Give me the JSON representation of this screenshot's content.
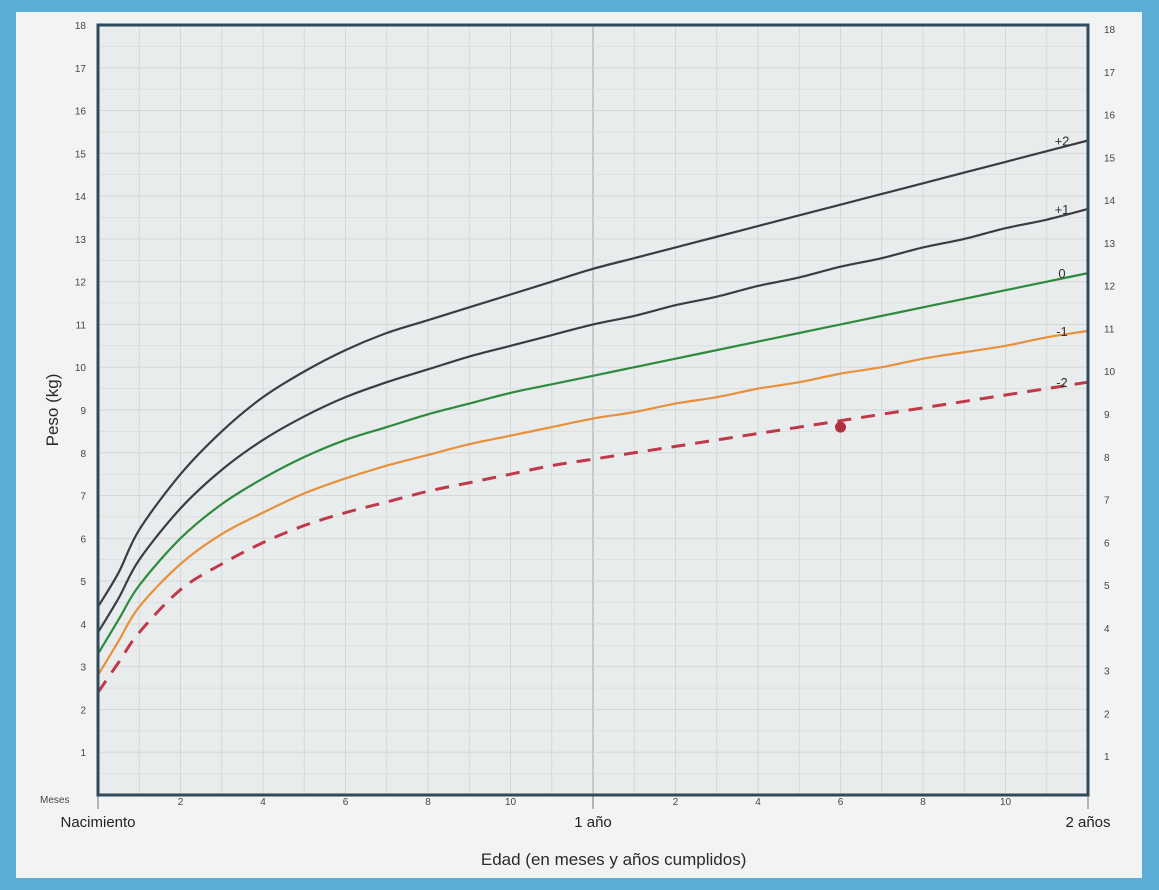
{
  "chart_data": {
    "type": "line",
    "title": "",
    "ylabel": "Peso (kg)",
    "xlabel": "Edad (en meses y años cumplidos)",
    "xlim": [
      0,
      24
    ],
    "ylim": [
      0,
      18
    ],
    "grid": true,
    "y_ticks": [
      1,
      2,
      3,
      4,
      5,
      6,
      7,
      8,
      9,
      10,
      11,
      12,
      13,
      14,
      15,
      16,
      17,
      18
    ],
    "x_month_ticks": [
      {
        "x": 2,
        "label": "2"
      },
      {
        "x": 4,
        "label": "4"
      },
      {
        "x": 6,
        "label": "6"
      },
      {
        "x": 8,
        "label": "8"
      },
      {
        "x": 10,
        "label": "10"
      },
      {
        "x": 14,
        "label": "2"
      },
      {
        "x": 16,
        "label": "4"
      },
      {
        "x": 18,
        "label": "6"
      },
      {
        "x": 20,
        "label": "8"
      },
      {
        "x": 22,
        "label": "10"
      }
    ],
    "x_major_labels": [
      {
        "x": 0,
        "label": "Nacimiento"
      },
      {
        "x": 12,
        "label": "1 año"
      },
      {
        "x": 24,
        "label": "2 años"
      }
    ],
    "months_label": "Meses",
    "x": [
      0,
      0.5,
      1,
      2,
      3,
      4,
      5,
      6,
      7,
      8,
      9,
      10,
      11,
      12,
      13,
      14,
      15,
      16,
      17,
      18,
      19,
      20,
      21,
      22,
      23,
      24
    ],
    "series": [
      {
        "name": "+2",
        "color": "#3c3c44",
        "dashed": false,
        "values": [
          4.4,
          5.2,
          6.2,
          7.5,
          8.5,
          9.3,
          9.9,
          10.4,
          10.8,
          11.1,
          11.4,
          11.7,
          12.0,
          12.3,
          12.55,
          12.8,
          13.05,
          13.3,
          13.55,
          13.8,
          14.05,
          14.3,
          14.55,
          14.8,
          15.05,
          15.3
        ]
      },
      {
        "name": "+1",
        "color": "#3c3c44",
        "dashed": false,
        "values": [
          3.8,
          4.6,
          5.5,
          6.7,
          7.6,
          8.3,
          8.85,
          9.3,
          9.65,
          9.95,
          10.25,
          10.5,
          10.75,
          11.0,
          11.2,
          11.45,
          11.65,
          11.9,
          12.1,
          12.35,
          12.55,
          12.8,
          13.0,
          13.25,
          13.45,
          13.7
        ]
      },
      {
        "name": "0",
        "color": "#2e8b3e",
        "dashed": false,
        "values": [
          3.3,
          4.1,
          4.9,
          6.0,
          6.8,
          7.4,
          7.9,
          8.3,
          8.6,
          8.9,
          9.15,
          9.4,
          9.6,
          9.8,
          10.0,
          10.2,
          10.4,
          10.6,
          10.8,
          11.0,
          11.2,
          11.4,
          11.6,
          11.8,
          12.0,
          12.2
        ]
      },
      {
        "name": "-1",
        "color": "#e8903a",
        "dashed": false,
        "values": [
          2.8,
          3.6,
          4.4,
          5.4,
          6.1,
          6.6,
          7.05,
          7.4,
          7.7,
          7.95,
          8.2,
          8.4,
          8.6,
          8.8,
          8.95,
          9.15,
          9.3,
          9.5,
          9.65,
          9.85,
          10.0,
          10.2,
          10.35,
          10.5,
          10.7,
          10.85
        ]
      },
      {
        "name": "-2",
        "color": "#c0394a",
        "dashed": true,
        "values": [
          2.4,
          3.1,
          3.8,
          4.8,
          5.4,
          5.9,
          6.3,
          6.6,
          6.85,
          7.1,
          7.3,
          7.5,
          7.7,
          7.85,
          8.0,
          8.15,
          8.3,
          8.45,
          8.6,
          8.75,
          8.9,
          9.05,
          9.2,
          9.35,
          9.5,
          9.65
        ]
      }
    ],
    "points": [
      {
        "x": 18,
        "y": 8.6,
        "color": "#b03040"
      }
    ]
  },
  "colors": {
    "background": "#5aaed6",
    "plot_area": "#e9ecec",
    "grid": "#d0d4d4",
    "frame": "#2f4a5a"
  }
}
